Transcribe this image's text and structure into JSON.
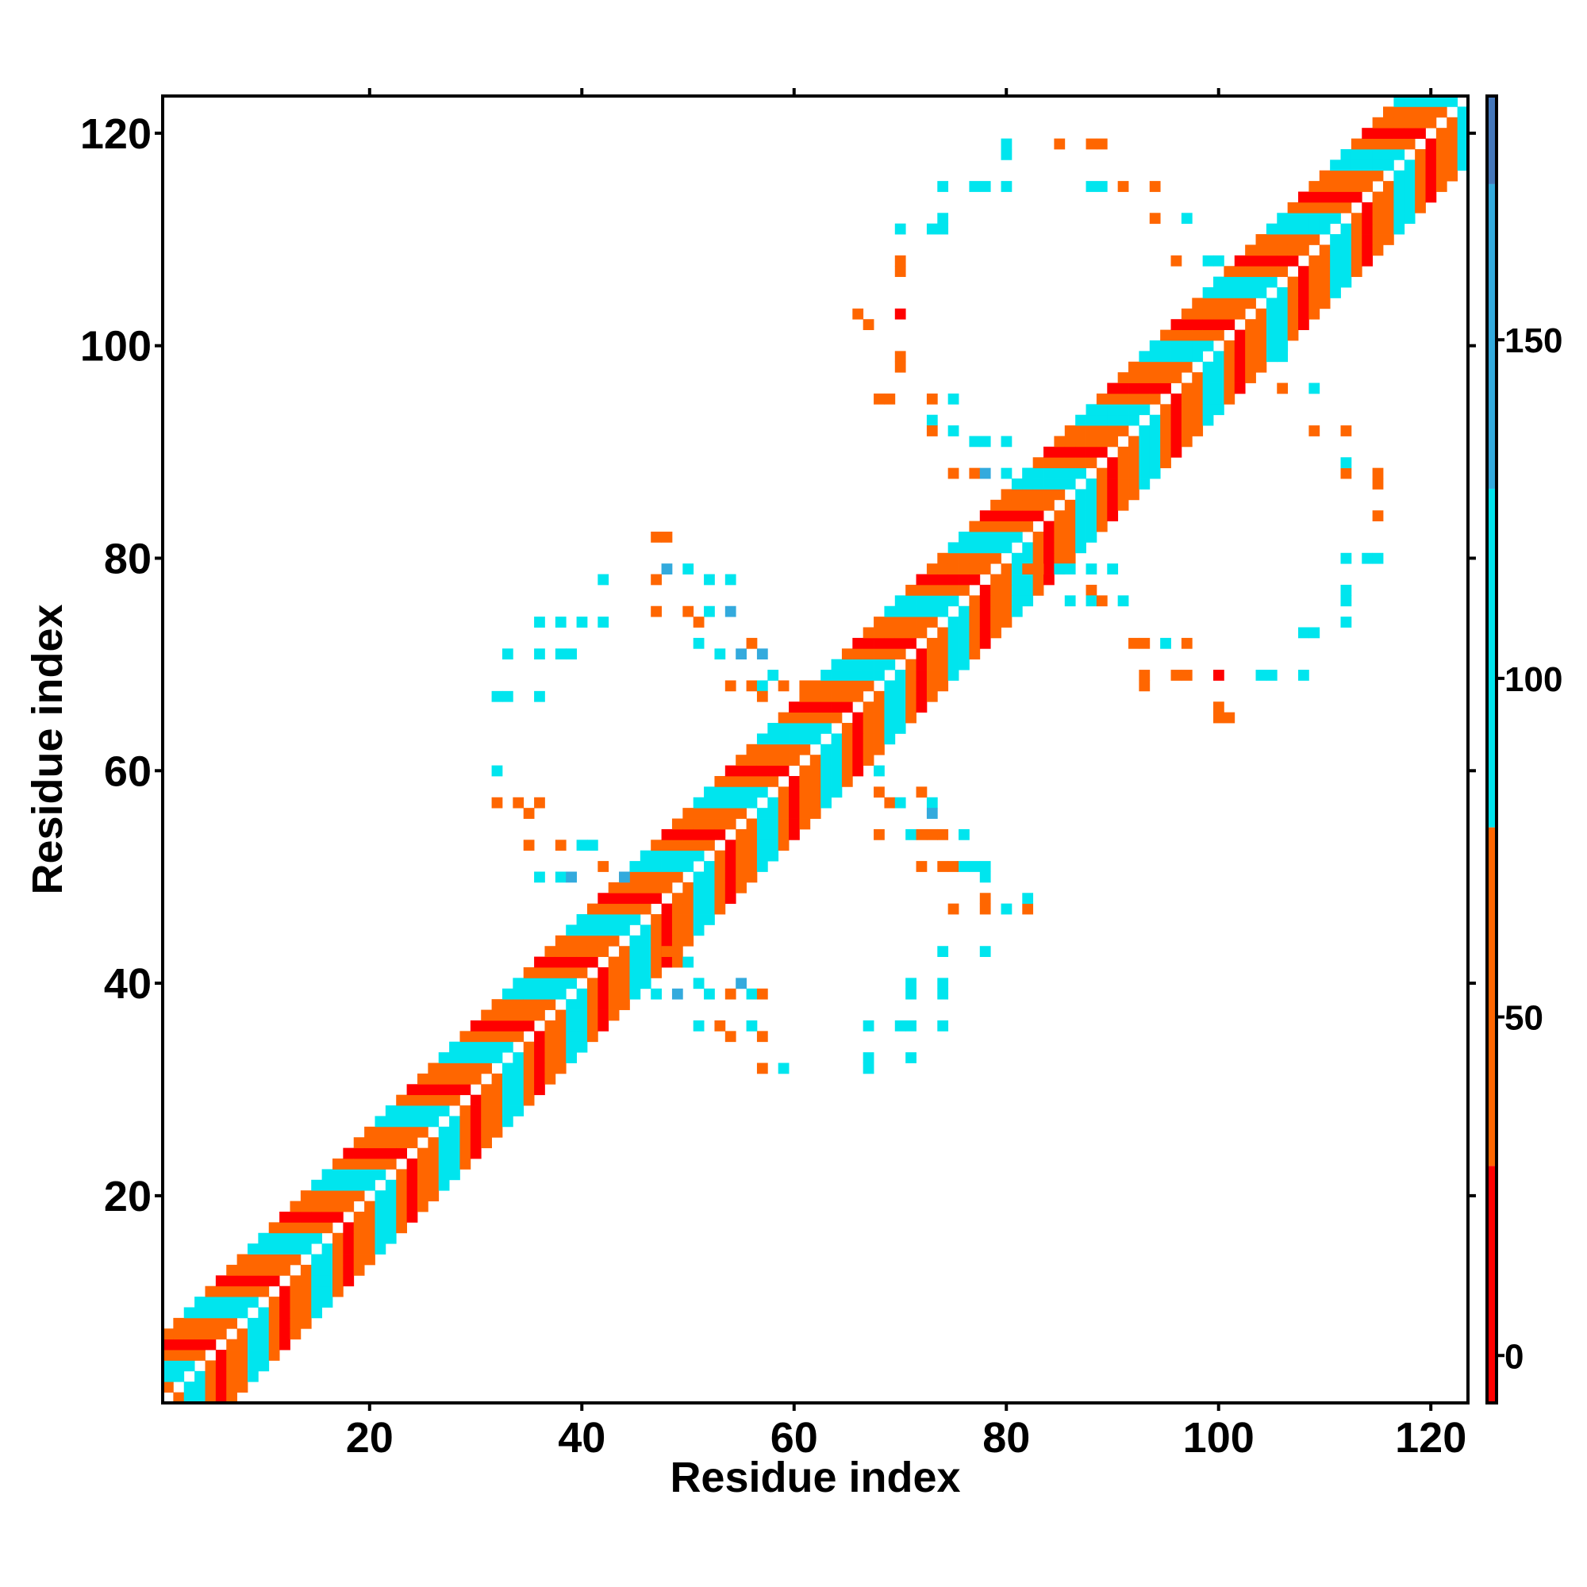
{
  "chart_data": {
    "type": "heatmap",
    "title": "",
    "xlabel": "Residue index",
    "ylabel": "Residue index",
    "xlim": [
      1,
      123
    ],
    "ylim": [
      1,
      123
    ],
    "x_ticks": [
      20,
      40,
      60,
      80,
      100,
      120
    ],
    "y_ticks": [
      20,
      40,
      60,
      80,
      100,
      120
    ],
    "colorbar": {
      "range": [
        -7,
        186
      ],
      "ticks": [
        0,
        50,
        100,
        150
      ],
      "bands": [
        {
          "from": -7,
          "to": 28,
          "color": "#ff0000"
        },
        {
          "from": 28,
          "to": 78,
          "color": "#ff6600"
        },
        {
          "from": 78,
          "to": 78,
          "color": "#ff9900"
        },
        {
          "from": 78,
          "to": 128,
          "color": "#00e5ee"
        },
        {
          "from": 128,
          "to": 173,
          "color": "#33aadd"
        },
        {
          "from": 173,
          "to": 186,
          "color": "#4477bb"
        }
      ]
    },
    "diagonal_band": {
      "min_offset": 1,
      "max_offset": 6,
      "value_pattern": [
        15,
        40,
        60,
        90,
        120,
        60
      ]
    },
    "off_diagonal_contacts": [
      {
        "x": 32,
        "y": 57,
        "v": 60
      },
      {
        "x": 34,
        "y": 57,
        "v": 60
      },
      {
        "x": 35,
        "y": 56,
        "v": 60
      },
      {
        "x": 36,
        "y": 57,
        "v": 60
      },
      {
        "x": 35,
        "y": 53,
        "v": 60
      },
      {
        "x": 38,
        "y": 53,
        "v": 60
      },
      {
        "x": 40,
        "y": 53,
        "v": 100
      },
      {
        "x": 41,
        "y": 53,
        "v": 100
      },
      {
        "x": 36,
        "y": 50,
        "v": 100
      },
      {
        "x": 38,
        "y": 50,
        "v": 100
      },
      {
        "x": 39,
        "y": 50,
        "v": 140
      },
      {
        "x": 42,
        "y": 51,
        "v": 60
      },
      {
        "x": 44,
        "y": 50,
        "v": 140
      },
      {
        "x": 32,
        "y": 60,
        "v": 100
      },
      {
        "x": 32,
        "y": 67,
        "v": 100
      },
      {
        "x": 33,
        "y": 67,
        "v": 100
      },
      {
        "x": 36,
        "y": 67,
        "v": 100
      },
      {
        "x": 33,
        "y": 71,
        "v": 100
      },
      {
        "x": 36,
        "y": 71,
        "v": 100
      },
      {
        "x": 38,
        "y": 71,
        "v": 100
      },
      {
        "x": 39,
        "y": 71,
        "v": 100
      },
      {
        "x": 36,
        "y": 74,
        "v": 100
      },
      {
        "x": 38,
        "y": 74,
        "v": 100
      },
      {
        "x": 40,
        "y": 74,
        "v": 100
      },
      {
        "x": 42,
        "y": 74,
        "v": 100
      },
      {
        "x": 42,
        "y": 78,
        "v": 100
      },
      {
        "x": 47,
        "y": 82,
        "v": 60
      },
      {
        "x": 48,
        "y": 82,
        "v": 60
      },
      {
        "x": 47,
        "y": 78,
        "v": 60
      },
      {
        "x": 48,
        "y": 79,
        "v": 140
      },
      {
        "x": 47,
        "y": 75,
        "v": 60
      },
      {
        "x": 50,
        "y": 79,
        "v": 100
      },
      {
        "x": 52,
        "y": 78,
        "v": 100
      },
      {
        "x": 50,
        "y": 75,
        "v": 60
      },
      {
        "x": 51,
        "y": 74,
        "v": 60
      },
      {
        "x": 52,
        "y": 75,
        "v": 100
      },
      {
        "x": 54,
        "y": 75,
        "v": 140
      },
      {
        "x": 51,
        "y": 72,
        "v": 100
      },
      {
        "x": 53,
        "y": 71,
        "v": 100
      },
      {
        "x": 55,
        "y": 71,
        "v": 140
      },
      {
        "x": 56,
        "y": 72,
        "v": 60
      },
      {
        "x": 57,
        "y": 71,
        "v": 140
      },
      {
        "x": 54,
        "y": 68,
        "v": 60
      },
      {
        "x": 56,
        "y": 68,
        "v": 60
      },
      {
        "x": 57,
        "y": 68,
        "v": 100
      },
      {
        "x": 58,
        "y": 69,
        "v": 100
      },
      {
        "x": 59,
        "y": 68,
        "v": 60
      },
      {
        "x": 57,
        "y": 67,
        "v": 60
      },
      {
        "x": 61,
        "y": 68,
        "v": 60
      },
      {
        "x": 54,
        "y": 78,
        "v": 100
      },
      {
        "x": 48,
        "y": 43,
        "v": 60
      },
      {
        "x": 49,
        "y": 42,
        "v": 60
      },
      {
        "x": 50,
        "y": 42,
        "v": 100
      },
      {
        "x": 47,
        "y": 39,
        "v": 100
      },
      {
        "x": 49,
        "y": 39,
        "v": 140
      },
      {
        "x": 51,
        "y": 40,
        "v": 100
      },
      {
        "x": 52,
        "y": 39,
        "v": 100
      },
      {
        "x": 54,
        "y": 39,
        "v": 60
      },
      {
        "x": 55,
        "y": 40,
        "v": 140
      },
      {
        "x": 56,
        "y": 39,
        "v": 100
      },
      {
        "x": 57,
        "y": 39,
        "v": 60
      },
      {
        "x": 51,
        "y": 36,
        "v": 100
      },
      {
        "x": 53,
        "y": 36,
        "v": 60
      },
      {
        "x": 54,
        "y": 35,
        "v": 60
      },
      {
        "x": 56,
        "y": 36,
        "v": 100
      },
      {
        "x": 57,
        "y": 35,
        "v": 60
      },
      {
        "x": 57,
        "y": 32,
        "v": 60
      },
      {
        "x": 59,
        "y": 32,
        "v": 100
      },
      {
        "x": 67,
        "y": 32,
        "v": 100
      },
      {
        "x": 67,
        "y": 33,
        "v": 100
      },
      {
        "x": 67,
        "y": 36,
        "v": 100
      },
      {
        "x": 70,
        "y": 36,
        "v": 100
      },
      {
        "x": 71,
        "y": 36,
        "v": 100
      },
      {
        "x": 71,
        "y": 33,
        "v": 100
      },
      {
        "x": 74,
        "y": 36,
        "v": 100
      },
      {
        "x": 71,
        "y": 39,
        "v": 100
      },
      {
        "x": 71,
        "y": 40,
        "v": 100
      },
      {
        "x": 74,
        "y": 39,
        "v": 100
      },
      {
        "x": 74,
        "y": 40,
        "v": 100
      },
      {
        "x": 74,
        "y": 43,
        "v": 100
      },
      {
        "x": 78,
        "y": 43,
        "v": 100
      },
      {
        "x": 68,
        "y": 60,
        "v": 100
      },
      {
        "x": 68,
        "y": 58,
        "v": 60
      },
      {
        "x": 69,
        "y": 57,
        "v": 60
      },
      {
        "x": 70,
        "y": 57,
        "v": 100
      },
      {
        "x": 72,
        "y": 58,
        "v": 60
      },
      {
        "x": 73,
        "y": 57,
        "v": 100
      },
      {
        "x": 73,
        "y": 56,
        "v": 140
      },
      {
        "x": 68,
        "y": 54,
        "v": 60
      },
      {
        "x": 71,
        "y": 54,
        "v": 100
      },
      {
        "x": 72,
        "y": 54,
        "v": 60
      },
      {
        "x": 73,
        "y": 54,
        "v": 60
      },
      {
        "x": 74,
        "y": 54,
        "v": 60
      },
      {
        "x": 76,
        "y": 54,
        "v": 100
      },
      {
        "x": 72,
        "y": 51,
        "v": 60
      },
      {
        "x": 74,
        "y": 51,
        "v": 60
      },
      {
        "x": 75,
        "y": 51,
        "v": 60
      },
      {
        "x": 76,
        "y": 51,
        "v": 100
      },
      {
        "x": 77,
        "y": 51,
        "v": 100
      },
      {
        "x": 78,
        "y": 51,
        "v": 100
      },
      {
        "x": 78,
        "y": 50,
        "v": 100
      },
      {
        "x": 75,
        "y": 47,
        "v": 40
      },
      {
        "x": 78,
        "y": 48,
        "v": 60
      },
      {
        "x": 78,
        "y": 47,
        "v": 60
      },
      {
        "x": 80,
        "y": 47,
        "v": 100
      },
      {
        "x": 82,
        "y": 47,
        "v": 40
      },
      {
        "x": 82,
        "y": 48,
        "v": 100
      },
      {
        "x": 66,
        "y": 103,
        "v": 40
      },
      {
        "x": 67,
        "y": 102,
        "v": 60
      },
      {
        "x": 70,
        "y": 103,
        "v": 15
      },
      {
        "x": 70,
        "y": 99,
        "v": 60
      },
      {
        "x": 70,
        "y": 98,
        "v": 60
      },
      {
        "x": 68,
        "y": 95,
        "v": 60
      },
      {
        "x": 69,
        "y": 95,
        "v": 60
      },
      {
        "x": 73,
        "y": 95,
        "v": 60
      },
      {
        "x": 75,
        "y": 95,
        "v": 100
      },
      {
        "x": 73,
        "y": 93,
        "v": 100
      },
      {
        "x": 73,
        "y": 92,
        "v": 60
      },
      {
        "x": 75,
        "y": 92,
        "v": 100
      },
      {
        "x": 77,
        "y": 91,
        "v": 100
      },
      {
        "x": 78,
        "y": 91,
        "v": 100
      },
      {
        "x": 80,
        "y": 91,
        "v": 100
      },
      {
        "x": 75,
        "y": 88,
        "v": 60
      },
      {
        "x": 77,
        "y": 88,
        "v": 60
      },
      {
        "x": 78,
        "y": 88,
        "v": 140
      },
      {
        "x": 80,
        "y": 88,
        "v": 100
      },
      {
        "x": 82,
        "y": 88,
        "v": 100
      },
      {
        "x": 70,
        "y": 108,
        "v": 60
      },
      {
        "x": 70,
        "y": 107,
        "v": 60
      },
      {
        "x": 70,
        "y": 111,
        "v": 100
      },
      {
        "x": 73,
        "y": 111,
        "v": 100
      },
      {
        "x": 74,
        "y": 111,
        "v": 100
      },
      {
        "x": 74,
        "y": 112,
        "v": 100
      },
      {
        "x": 74,
        "y": 115,
        "v": 100
      },
      {
        "x": 77,
        "y": 115,
        "v": 100
      },
      {
        "x": 78,
        "y": 115,
        "v": 100
      },
      {
        "x": 80,
        "y": 115,
        "v": 100
      },
      {
        "x": 80,
        "y": 119,
        "v": 100
      },
      {
        "x": 80,
        "y": 118,
        "v": 100
      },
      {
        "x": 85,
        "y": 119,
        "v": 60
      },
      {
        "x": 88,
        "y": 119,
        "v": 60
      },
      {
        "x": 89,
        "y": 119,
        "v": 60
      },
      {
        "x": 88,
        "y": 115,
        "v": 100
      },
      {
        "x": 89,
        "y": 115,
        "v": 100
      },
      {
        "x": 91,
        "y": 115,
        "v": 60
      },
      {
        "x": 94,
        "y": 115,
        "v": 60
      },
      {
        "x": 94,
        "y": 112,
        "v": 60
      },
      {
        "x": 97,
        "y": 112,
        "v": 100
      },
      {
        "x": 96,
        "y": 108,
        "v": 60
      },
      {
        "x": 99,
        "y": 108,
        "v": 100
      },
      {
        "x": 100,
        "y": 108,
        "v": 100
      },
      {
        "x": 82,
        "y": 79,
        "v": 60
      },
      {
        "x": 83,
        "y": 79,
        "v": 60
      },
      {
        "x": 85,
        "y": 79,
        "v": 100
      },
      {
        "x": 86,
        "y": 79,
        "v": 100
      },
      {
        "x": 88,
        "y": 79,
        "v": 100
      },
      {
        "x": 90,
        "y": 79,
        "v": 100
      },
      {
        "x": 88,
        "y": 77,
        "v": 60
      },
      {
        "x": 88,
        "y": 76,
        "v": 100
      },
      {
        "x": 86,
        "y": 76,
        "v": 100
      },
      {
        "x": 89,
        "y": 76,
        "v": 60
      },
      {
        "x": 91,
        "y": 76,
        "v": 100
      },
      {
        "x": 92,
        "y": 72,
        "v": 60
      },
      {
        "x": 93,
        "y": 72,
        "v": 60
      },
      {
        "x": 95,
        "y": 72,
        "v": 100
      },
      {
        "x": 97,
        "y": 72,
        "v": 60
      },
      {
        "x": 93,
        "y": 69,
        "v": 60
      },
      {
        "x": 93,
        "y": 68,
        "v": 60
      },
      {
        "x": 96,
        "y": 69,
        "v": 60
      },
      {
        "x": 97,
        "y": 69,
        "v": 60
      },
      {
        "x": 100,
        "y": 69,
        "v": 15
      },
      {
        "x": 100,
        "y": 66,
        "v": 40
      },
      {
        "x": 101,
        "y": 65,
        "v": 40
      },
      {
        "x": 100,
        "y": 65,
        "v": 40
      },
      {
        "x": 104,
        "y": 69,
        "v": 100
      },
      {
        "x": 105,
        "y": 69,
        "v": 100
      },
      {
        "x": 108,
        "y": 69,
        "v": 100
      },
      {
        "x": 108,
        "y": 73,
        "v": 100
      },
      {
        "x": 109,
        "y": 73,
        "v": 100
      },
      {
        "x": 112,
        "y": 74,
        "v": 100
      },
      {
        "x": 112,
        "y": 77,
        "v": 100
      },
      {
        "x": 112,
        "y": 76,
        "v": 100
      },
      {
        "x": 112,
        "y": 80,
        "v": 100
      },
      {
        "x": 114,
        "y": 80,
        "v": 100
      },
      {
        "x": 115,
        "y": 80,
        "v": 100
      },
      {
        "x": 115,
        "y": 84,
        "v": 40
      },
      {
        "x": 115,
        "y": 87,
        "v": 60
      },
      {
        "x": 115,
        "y": 88,
        "v": 60
      },
      {
        "x": 112,
        "y": 88,
        "v": 60
      },
      {
        "x": 112,
        "y": 89,
        "v": 100
      },
      {
        "x": 112,
        "y": 92,
        "v": 60
      },
      {
        "x": 109,
        "y": 92,
        "v": 60
      },
      {
        "x": 109,
        "y": 96,
        "v": 100
      },
      {
        "x": 106,
        "y": 96,
        "v": 60
      },
      {
        "x": 106,
        "y": 99,
        "v": 100
      },
      {
        "x": 106,
        "y": 100,
        "v": 100
      }
    ]
  }
}
